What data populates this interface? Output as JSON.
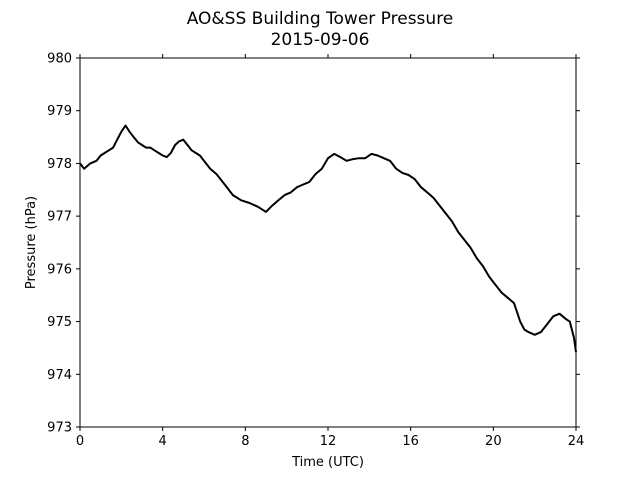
{
  "chart_data": {
    "type": "line",
    "title": "AO&SS Building Tower Pressure",
    "subtitle": "2015-09-06",
    "xlabel": "Time (UTC)",
    "ylabel": "Pressure (hPa)",
    "xlim": [
      0,
      24
    ],
    "ylim": [
      973,
      980
    ],
    "xticks": [
      0,
      4,
      8,
      12,
      16,
      20,
      24
    ],
    "yticks": [
      973,
      974,
      975,
      976,
      977,
      978,
      979,
      980
    ],
    "grid": false,
    "line_color": "#000000",
    "series": [
      {
        "x": [
          0,
          0.2,
          0.5,
          0.8,
          1.0,
          1.2,
          1.4,
          1.6,
          1.8,
          2.0,
          2.2,
          2.4,
          2.6,
          2.8,
          3.0,
          3.2,
          3.4,
          3.6,
          3.8,
          4.0,
          4.2,
          4.4,
          4.6,
          4.8,
          5.0,
          5.2,
          5.4,
          5.6,
          5.8,
          6.0,
          6.3,
          6.6,
          7.0,
          7.4,
          7.8,
          8.2,
          8.6,
          9.0,
          9.3,
          9.6,
          9.9,
          10.2,
          10.5,
          10.8,
          11.1,
          11.4,
          11.7,
          12.0,
          12.3,
          12.6,
          12.9,
          13.2,
          13.5,
          13.8,
          14.1,
          14.4,
          14.7,
          15.0,
          15.3,
          15.6,
          15.9,
          16.2,
          16.5,
          16.8,
          17.1,
          17.4,
          17.7,
          18.0,
          18.3,
          18.6,
          18.9,
          19.2,
          19.5,
          19.8,
          20.1,
          20.4,
          20.7,
          21.0,
          21.3,
          21.5,
          21.7,
          22.0,
          22.3,
          22.6,
          22.9,
          23.2,
          23.5,
          23.7,
          23.9,
          24.0
        ],
        "values": [
          978.0,
          977.9,
          978.0,
          978.05,
          978.15,
          978.2,
          978.25,
          978.3,
          978.45,
          978.6,
          978.72,
          978.6,
          978.5,
          978.4,
          978.35,
          978.3,
          978.3,
          978.25,
          978.2,
          978.15,
          978.12,
          978.2,
          978.35,
          978.42,
          978.45,
          978.35,
          978.25,
          978.2,
          978.15,
          978.05,
          977.9,
          977.8,
          977.6,
          977.4,
          977.3,
          977.25,
          977.18,
          977.08,
          977.2,
          977.3,
          977.4,
          977.45,
          977.55,
          977.6,
          977.65,
          977.8,
          977.9,
          978.1,
          978.18,
          978.12,
          978.05,
          978.08,
          978.1,
          978.1,
          978.18,
          978.15,
          978.1,
          978.05,
          977.9,
          977.82,
          977.78,
          977.7,
          977.55,
          977.45,
          977.35,
          977.2,
          977.05,
          976.9,
          976.7,
          976.55,
          976.4,
          976.2,
          976.05,
          975.85,
          975.7,
          975.55,
          975.45,
          975.35,
          975.0,
          974.85,
          974.8,
          974.75,
          974.8,
          974.95,
          975.1,
          975.15,
          975.05,
          975.0,
          974.7,
          974.42
        ]
      }
    ]
  }
}
